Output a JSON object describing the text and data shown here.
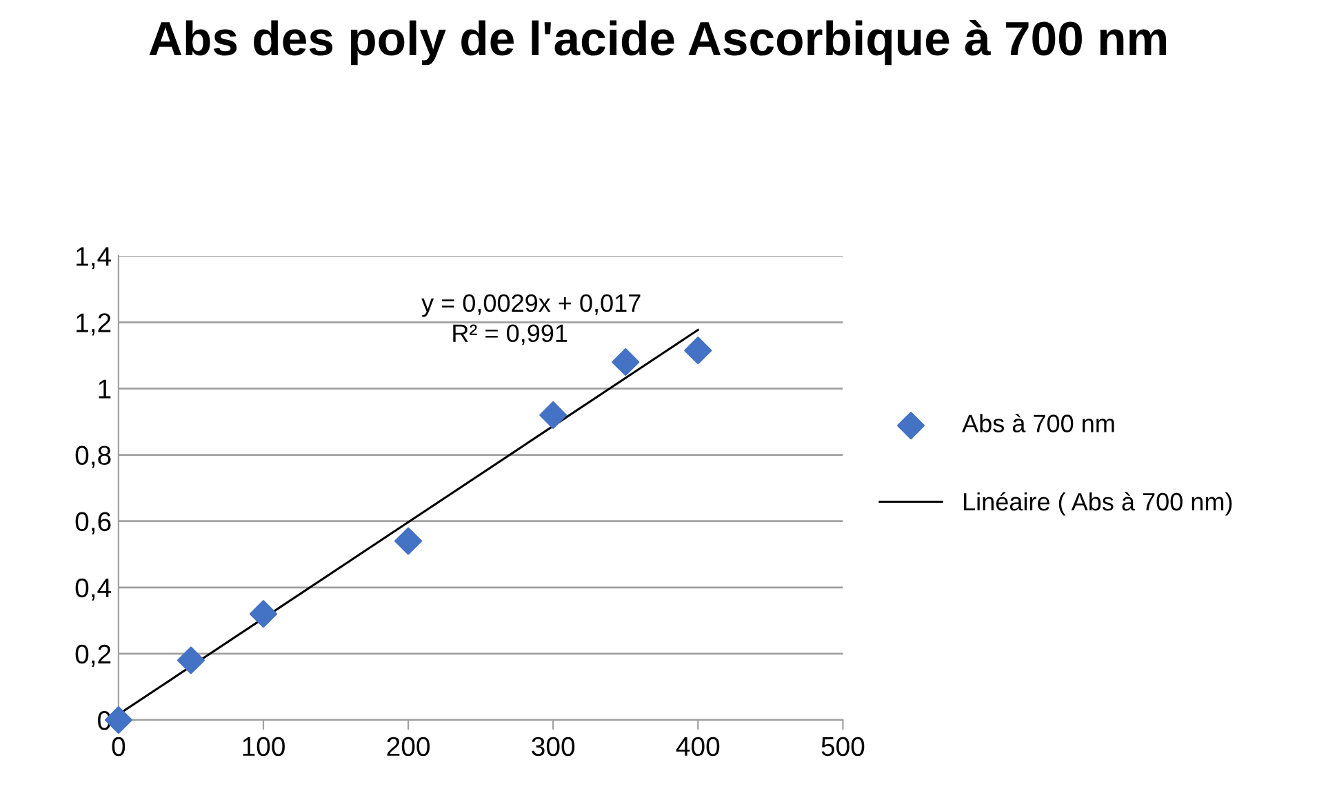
{
  "chart_data": {
    "type": "scatter",
    "title": "Abs des poly de l'acide Ascorbique à 700 nm",
    "series": [
      {
        "name": "Abs à 700 nm",
        "color": "#4472c4",
        "marker": "diamond",
        "x": [
          0,
          50,
          100,
          200,
          300,
          350,
          400
        ],
        "values": [
          0,
          0.18,
          0.32,
          0.54,
          0.92,
          1.08,
          1.115
        ]
      },
      {
        "name": "Linéaire ( Abs à 700 nm)",
        "type": "line",
        "color": "#000000",
        "line_style": "solid",
        "x": [
          0,
          400
        ],
        "values": [
          0.017,
          1.177
        ]
      }
    ],
    "annotations": [
      "y = 0,0029x + 0,017",
      "R² = 0,991"
    ],
    "xlim": [
      0,
      500
    ],
    "xticks": [
      0,
      100,
      200,
      300,
      400,
      500
    ],
    "ylim": [
      0,
      1.4
    ],
    "yticks": [
      0,
      {
        "value": 0.2,
        "label": "0,2"
      },
      {
        "value": 0.4,
        "label": "0,4"
      },
      {
        "value": 0.6,
        "label": "0,6"
      },
      {
        "value": 0.8,
        "label": "0,8"
      },
      1,
      {
        "value": 1.2,
        "label": "1,2"
      },
      {
        "value": 1.4,
        "label": "1,4"
      }
    ],
    "grid": "y",
    "legend": "right"
  }
}
